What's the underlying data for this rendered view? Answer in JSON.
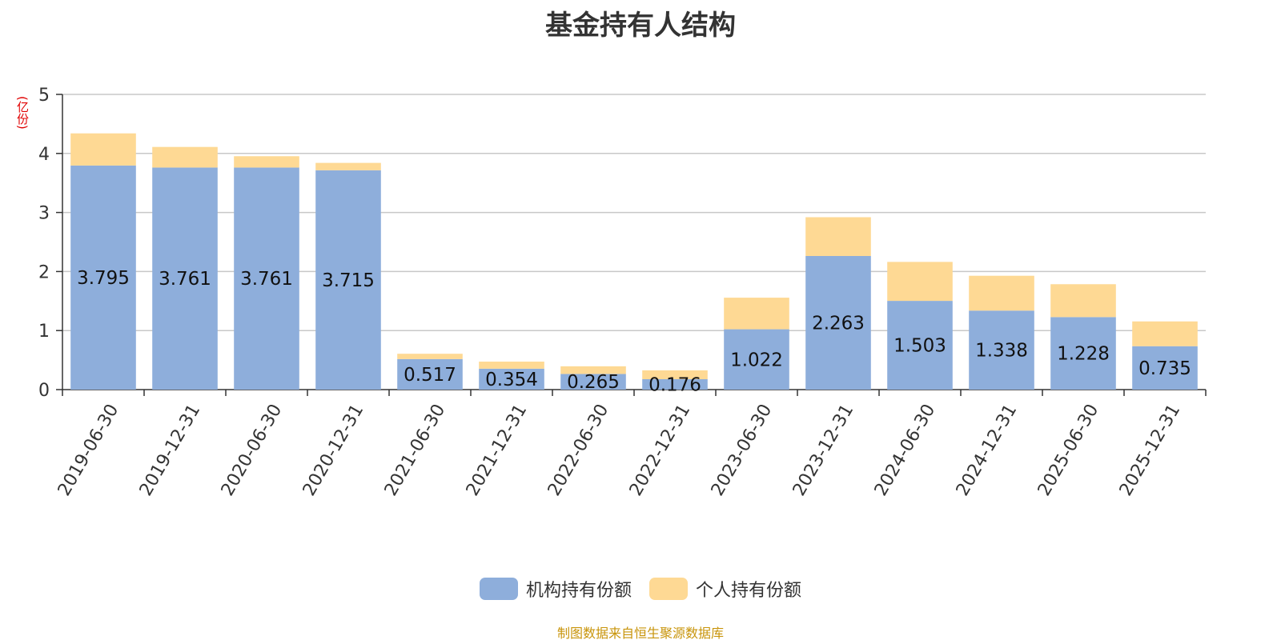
{
  "title": "基金持有人结构",
  "unit_label": "(亿份)",
  "source": "制图数据来自恒生聚源数据库",
  "colors": {
    "institutional": "#8eaedb",
    "individual": "#fed994",
    "grid": "#c8c8c8",
    "axis": "#333333"
  },
  "chart_data": {
    "type": "bar",
    "stacked": true,
    "title": "基金持有人结构",
    "ylabel": "(亿份)",
    "ylim": [
      0,
      5
    ],
    "yticks": [
      0,
      1,
      2,
      3,
      4,
      5
    ],
    "grid": true,
    "legend_position": "bottom",
    "categories": [
      "2019-06-30",
      "2019-12-31",
      "2020-06-30",
      "2020-12-31",
      "2021-06-30",
      "2021-12-31",
      "2022-06-30",
      "2022-12-31",
      "2023-06-30",
      "2023-12-31",
      "2024-06-30",
      "2024-12-31",
      "2025-06-30",
      "2025-12-31"
    ],
    "series": [
      {
        "name": "机构持有份额",
        "color": "#8eaedb",
        "values": [
          3.795,
          3.761,
          3.761,
          3.715,
          0.517,
          0.354,
          0.265,
          0.176,
          1.022,
          2.263,
          1.503,
          1.338,
          1.228,
          0.735
        ],
        "labels": [
          "3.795",
          "3.761",
          "3.761",
          "3.715",
          "0.517",
          "0.354",
          "0.265",
          "0.176",
          "1.022",
          "2.263",
          "1.503",
          "1.338",
          "1.228",
          "0.735"
        ]
      },
      {
        "name": "个人持有份额",
        "color": "#fed994",
        "values": [
          0.545,
          0.349,
          0.192,
          0.125,
          0.09,
          0.12,
          0.13,
          0.15,
          0.535,
          0.657,
          0.66,
          0.59,
          0.557,
          0.42
        ]
      }
    ]
  }
}
